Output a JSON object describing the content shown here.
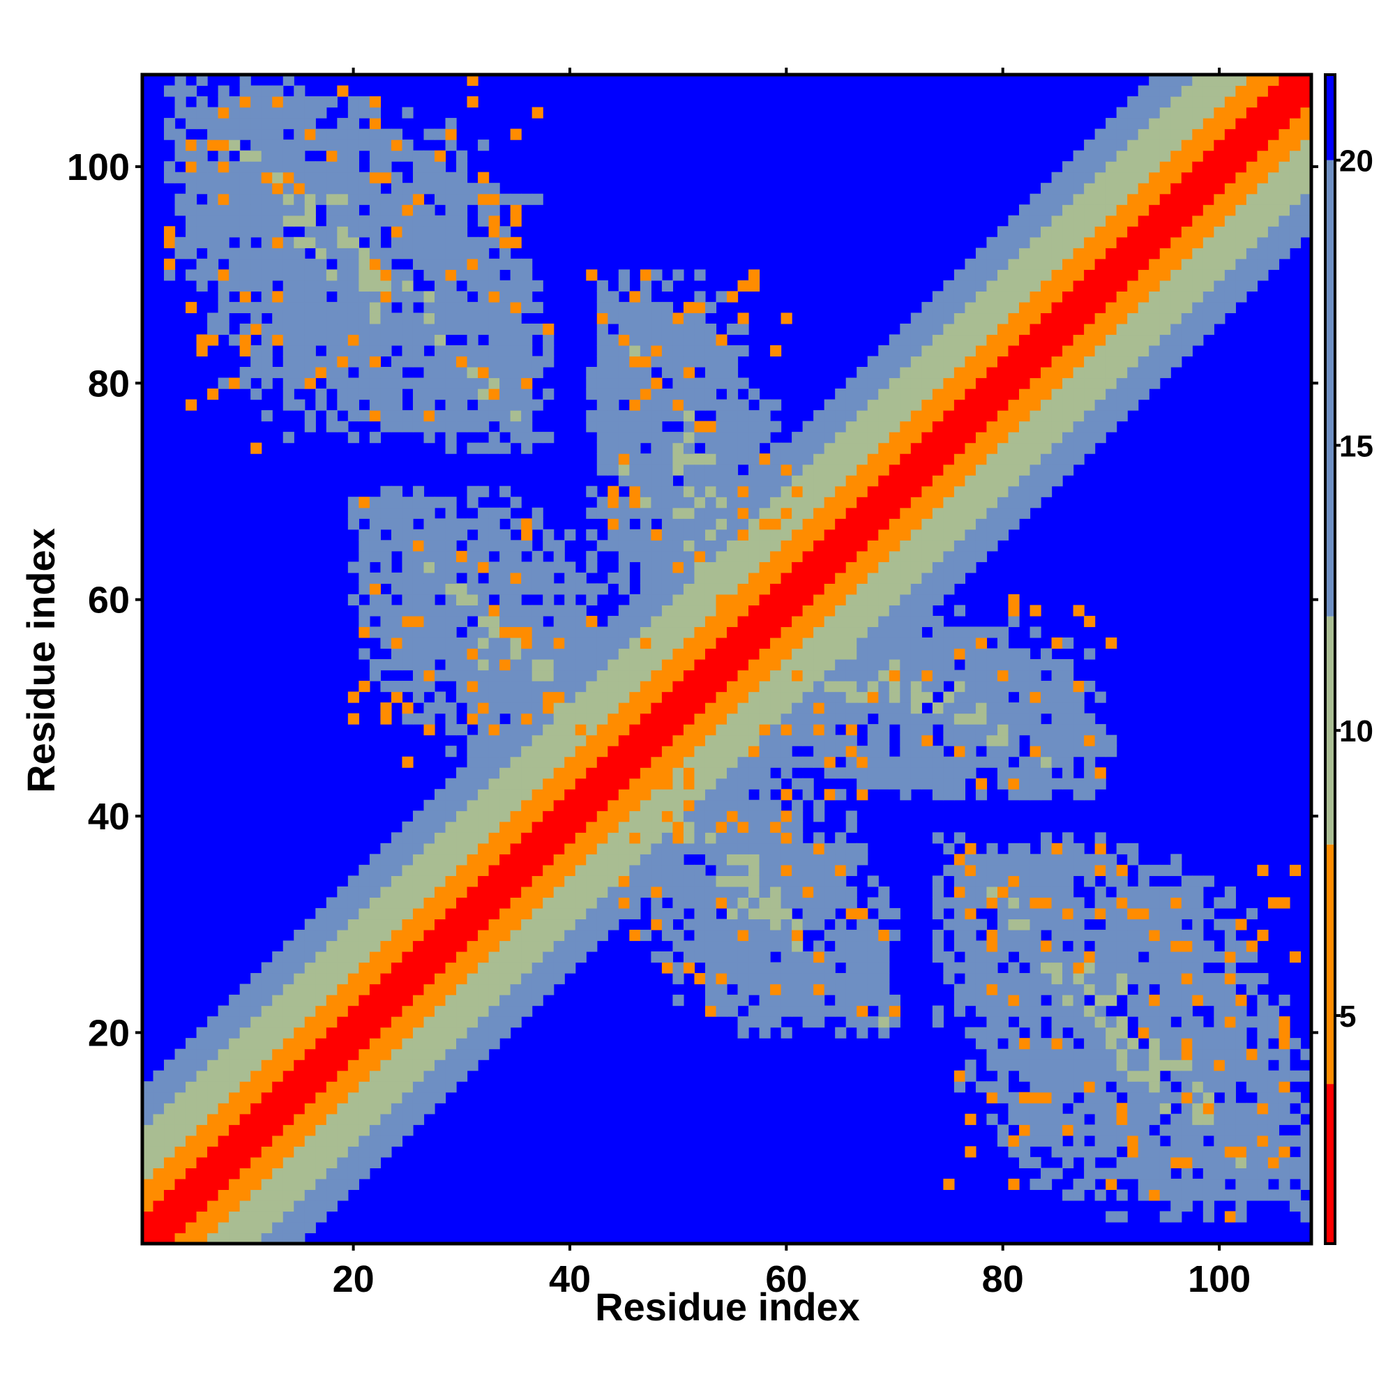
{
  "chart_data": {
    "type": "heatmap",
    "title": "",
    "xlabel": "Residue index",
    "ylabel": "Residue index",
    "xlim": [
      0.5,
      108.5
    ],
    "ylim": [
      0.5,
      108.5
    ],
    "n_residues": 108,
    "x_ticks": [
      20,
      40,
      60,
      80,
      100
    ],
    "y_ticks": [
      20,
      40,
      60,
      80,
      100
    ],
    "grid": false,
    "symmetric": true,
    "colorbar": {
      "ticks": [
        5,
        10,
        15,
        20
      ],
      "range": [
        1,
        21.5
      ],
      "colors": [
        {
          "to": 3.8,
          "color": "#ff0000"
        },
        {
          "to": 8.0,
          "color": "#ff8c00"
        },
        {
          "to": 12.0,
          "color": "#a9bd92"
        },
        {
          "to": 20.0,
          "color": "#6e8fc3"
        },
        {
          "to": 21.5,
          "color": "#0000ff"
        }
      ]
    },
    "diagonal_band_widths": {
      "contact": 2,
      "close": 5,
      "mid": 10,
      "far": 14
    },
    "contact_clusters": [
      {
        "x": [
          3,
          38
        ],
        "y": [
          74,
          108
        ],
        "description": "antiparallel contacts residues 3-38 with 74-108"
      },
      {
        "x": [
          42,
          62
        ],
        "y": [
          55,
          75
        ],
        "description": "contacts residues 42-62 with 55-75"
      },
      {
        "x": [
          55,
          90
        ],
        "y": [
          42,
          60
        ],
        "description": "contacts residues 55-90 with 42-60"
      },
      {
        "x": [
          20,
          45
        ],
        "y": [
          45,
          70
        ],
        "description": "contacts residues 20-45 with 45-70"
      }
    ]
  }
}
